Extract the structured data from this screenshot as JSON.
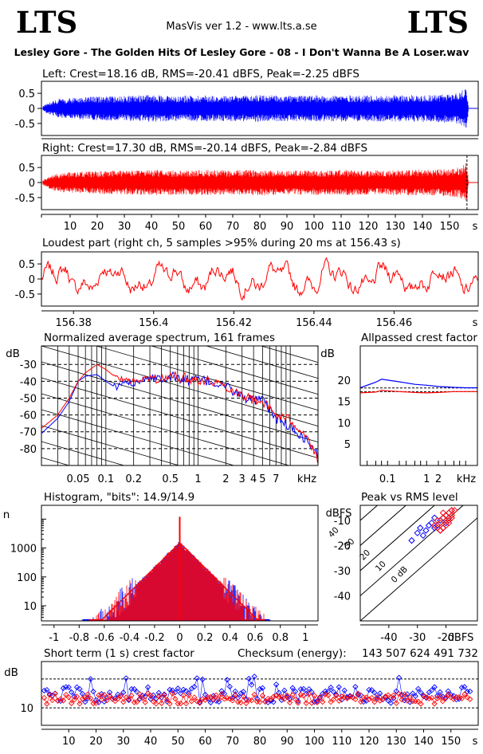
{
  "header": {
    "logo_left": "LTS",
    "logo_right": "LTS",
    "version": "MasVis ver 1.2 - www.lts.a.se",
    "filename": "Lesley Gore - The Golden Hits Of Lesley Gore - 08 - I Don't Wanna Be A Loser.wav"
  },
  "colors": {
    "left_channel": "#0000ff",
    "right_channel": "#ff0000",
    "axis": "#000000",
    "background": "#ffffff"
  },
  "chart_data": [
    {
      "id": "left-waveform",
      "type": "area",
      "title": "Left: Crest=18.16 dB, RMS=-20.41 dBFS, Peak=-2.25 dBFS",
      "series": [
        {
          "name": "Left",
          "color": "#0000ff"
        }
      ],
      "crest_db": 18.16,
      "rms_dbfs": -20.41,
      "peak_dbfs": -2.25,
      "ylim": [
        -0.9,
        0.9
      ],
      "yticks": [
        0.5,
        0,
        -0.5
      ],
      "ytick_labels": [
        "0.5",
        "0",
        "-0.5"
      ],
      "xlim": [
        0,
        160
      ],
      "envelope": {
        "x": [
          0,
          2,
          5,
          10,
          20,
          30,
          40,
          50,
          60,
          70,
          80,
          90,
          100,
          110,
          120,
          130,
          140,
          150,
          154,
          156.4,
          157
        ],
        "amplitude": [
          0.08,
          0.2,
          0.3,
          0.35,
          0.4,
          0.42,
          0.45,
          0.42,
          0.44,
          0.42,
          0.45,
          0.42,
          0.43,
          0.44,
          0.43,
          0.44,
          0.45,
          0.48,
          0.55,
          0.75,
          0
        ]
      }
    },
    {
      "id": "right-waveform",
      "type": "area",
      "title": "Right: Crest=17.30 dB, RMS=-20.14 dBFS, Peak=-2.84 dBFS",
      "series": [
        {
          "name": "Right",
          "color": "#ff0000"
        }
      ],
      "crest_db": 17.3,
      "rms_dbfs": -20.14,
      "peak_dbfs": -2.84,
      "ylim": [
        -0.9,
        0.9
      ],
      "yticks": [
        0.5,
        0,
        -0.5
      ],
      "ytick_labels": [
        "0.5",
        "0",
        "-0.5"
      ],
      "xlim": [
        0,
        160
      ],
      "xticks": [
        10,
        20,
        30,
        40,
        50,
        60,
        70,
        80,
        90,
        100,
        110,
        120,
        130,
        140,
        150
      ],
      "xtick_labels": [
        "10",
        "20",
        "30",
        "40",
        "50",
        "60",
        "70",
        "80",
        "90",
        "100",
        "110",
        "120",
        "130",
        "140",
        "150"
      ],
      "xunit": "s",
      "marker_x": 156.43,
      "envelope": {
        "x": [
          0,
          2,
          5,
          10,
          20,
          30,
          40,
          50,
          60,
          70,
          80,
          90,
          100,
          110,
          120,
          130,
          140,
          150,
          154,
          156.4,
          157
        ],
        "amplitude": [
          0.08,
          0.2,
          0.3,
          0.35,
          0.38,
          0.4,
          0.42,
          0.4,
          0.42,
          0.4,
          0.43,
          0.4,
          0.41,
          0.42,
          0.41,
          0.42,
          0.43,
          0.46,
          0.52,
          0.7,
          0
        ]
      }
    },
    {
      "id": "loudest-part",
      "type": "line",
      "title": "Loudest part (right ch, 5 samples >95% during 20 ms at 156.43 s)",
      "series": [
        {
          "name": "Right",
          "color": "#ff0000"
        }
      ],
      "ylim": [
        -0.9,
        0.9
      ],
      "yticks": [
        0.5,
        0,
        -0.5
      ],
      "ytick_labels": [
        "0.5",
        "0",
        "-0.5"
      ],
      "xlim": [
        156.372,
        156.481
      ],
      "xticks": [
        156.38,
        156.4,
        156.42,
        156.44,
        156.46
      ],
      "xtick_labels": [
        "156.38",
        "156.4",
        "156.42",
        "156.44",
        "156.46"
      ],
      "xunit": "s"
    },
    {
      "id": "average-spectrum",
      "type": "line",
      "title": "Normalized average spectrum, 161 frames",
      "ylabel": "dB",
      "xunit": "kHz",
      "xscale": "log",
      "xlim_khz": [
        0.02,
        20
      ],
      "ylim": [
        -90,
        -19
      ],
      "yticks": [
        -30,
        -40,
        -50,
        -60,
        -70,
        -80
      ],
      "ytick_labels": [
        "-30",
        "-40",
        "-50",
        "-60",
        "-70",
        "-80"
      ],
      "xticks_khz": [
        0.05,
        0.1,
        0.2,
        0.5,
        1,
        2,
        3,
        4,
        5,
        7
      ],
      "xtick_labels": [
        "0.05",
        "0.1",
        "0.2",
        "0.5",
        "1",
        "2",
        "3",
        "4",
        "5",
        "7"
      ],
      "series": [
        {
          "name": "Left",
          "color": "#0000ff",
          "x_khz": [
            0.02,
            0.03,
            0.04,
            0.05,
            0.06,
            0.08,
            0.1,
            0.13,
            0.16,
            0.2,
            0.3,
            0.4,
            0.5,
            0.7,
            1,
            1.5,
            2,
            3,
            4,
            5,
            7,
            10,
            15,
            20
          ],
          "db": [
            -71,
            -62,
            -52,
            -40,
            -37,
            -36,
            -40,
            -44,
            -40,
            -41,
            -37,
            -38,
            -37,
            -39,
            -39,
            -41,
            -43,
            -49,
            -52,
            -51,
            -62,
            -67,
            -75,
            -84
          ]
        },
        {
          "name": "Right",
          "color": "#ff0000",
          "x_khz": [
            0.02,
            0.03,
            0.04,
            0.05,
            0.06,
            0.08,
            0.1,
            0.13,
            0.16,
            0.2,
            0.3,
            0.4,
            0.5,
            0.7,
            1,
            1.5,
            2,
            3,
            4,
            5,
            7,
            10,
            15,
            20
          ],
          "db": [
            -68,
            -60,
            -50,
            -40,
            -35,
            -30,
            -33,
            -38,
            -39,
            -40,
            -38,
            -39,
            -37,
            -38,
            -39,
            -40,
            -43,
            -48,
            -51,
            -52,
            -60,
            -63,
            -72,
            -88
          ]
        }
      ]
    },
    {
      "id": "allpassed-crest",
      "type": "line",
      "title": "Allpassed crest factor",
      "ylabel": "dB",
      "xunit": "kHz",
      "xscale": "log",
      "xlim_khz": [
        0.02,
        20
      ],
      "ylim": [
        0,
        28
      ],
      "yticks": [
        20,
        15,
        10,
        5
      ],
      "ytick_labels": [
        "20",
        "15",
        "10",
        "5"
      ],
      "xticks_khz": [
        0.1,
        1,
        2
      ],
      "xtick_labels": [
        "0.1",
        "1",
        "2"
      ],
      "ref_lines": [
        18.16,
        17.3
      ],
      "series": [
        {
          "name": "Left",
          "color": "#0000ff",
          "x_khz": [
            0.02,
            0.05,
            0.07,
            0.1,
            0.2,
            0.5,
            1,
            2,
            5,
            10,
            20
          ],
          "db": [
            18.2,
            19.5,
            20.2,
            20.0,
            19.6,
            19.0,
            18.8,
            18.5,
            18.3,
            18.2,
            18.2
          ]
        },
        {
          "name": "Right",
          "color": "#ff0000",
          "x_khz": [
            0.02,
            0.05,
            0.07,
            0.1,
            0.2,
            0.5,
            1,
            2,
            5,
            10,
            20
          ],
          "db": [
            17.0,
            17.2,
            17.6,
            17.5,
            17.3,
            17.1,
            17.0,
            17.1,
            17.3,
            17.3,
            17.3
          ]
        }
      ]
    },
    {
      "id": "histogram",
      "type": "line",
      "title": "Histogram, \"bits\": 14.9/14.9",
      "ylabel": "n",
      "yscale": "log",
      "ylim": [
        3,
        30000
      ],
      "yticks": [
        1000,
        100,
        10
      ],
      "ytick_labels": [
        "1000",
        "100",
        "10"
      ],
      "xlim": [
        -1.1,
        1.1
      ],
      "xticks": [
        -1,
        -0.8,
        -0.6,
        -0.4,
        -0.2,
        0,
        0.2,
        0.4,
        0.6,
        0.8,
        1
      ],
      "xtick_labels": [
        "-1",
        "-0.8",
        "-0.6",
        "-0.4",
        "-0.2",
        "0",
        "0.2",
        "0.4",
        "0.6",
        "0.8",
        "1"
      ],
      "series": [
        {
          "name": "Left",
          "color": "#0000ff",
          "x_range": [
            -0.78,
            0.72
          ]
        },
        {
          "name": "Right",
          "color": "#ff0000",
          "x_range": [
            -0.72,
            0.68
          ]
        }
      ],
      "peak_count": 1500,
      "center_spike": 12000
    },
    {
      "id": "peak-vs-rms",
      "type": "scatter",
      "title": "Peak vs RMS level",
      "ylabel": "dBFS",
      "xunit": "dBFS",
      "xlim": [
        -50,
        -9
      ],
      "ylim": [
        -50,
        -4
      ],
      "xticks": [
        -40,
        -30,
        -20
      ],
      "xtick_labels": [
        "-40",
        "-30",
        "-20"
      ],
      "yticks": [
        -10,
        -20,
        -30,
        -40
      ],
      "ytick_labels": [
        "-10",
        "-20",
        "-30",
        "-40"
      ],
      "crest_lines": [
        0,
        10,
        20,
        30,
        40
      ],
      "crest_labels": [
        "0 dB",
        "10",
        "20",
        "30",
        "40"
      ],
      "series": [
        {
          "name": "Left",
          "color": "#0000ff",
          "x": [
            -32,
            -30,
            -29,
            -28,
            -27,
            -26,
            -25,
            -24,
            -23,
            -22,
            -21,
            -20,
            -19,
            -18,
            -22,
            -24,
            -20,
            -19,
            -21
          ],
          "y": [
            -18,
            -15,
            -13,
            -16,
            -14,
            -12,
            -11,
            -13,
            -12,
            -10,
            -9,
            -8,
            -7,
            -6,
            -14,
            -9,
            -11,
            -9,
            -13
          ]
        },
        {
          "name": "Right",
          "color": "#ff0000",
          "x": [
            -24,
            -23,
            -22,
            -21,
            -20,
            -19,
            -18,
            -17,
            -22,
            -21,
            -20,
            -19,
            -18,
            -23,
            -20,
            -19,
            -21,
            -18
          ],
          "y": [
            -12,
            -10,
            -11,
            -9,
            -8,
            -7,
            -6,
            -6,
            -14,
            -13,
            -12,
            -10,
            -9,
            -13,
            -10,
            -11,
            -7,
            -8
          ]
        }
      ]
    },
    {
      "id": "short-term-crest",
      "type": "scatter",
      "title": "Short term (1 s) crest factor",
      "checksum_label": "Checksum (energy):",
      "checksum_value": "143 507 624 491 732",
      "ylabel": "dB",
      "ylim": [
        4,
        26
      ],
      "yticks": [
        10
      ],
      "ytick_labels": [
        "10"
      ],
      "ref_lines": [
        20,
        10
      ],
      "xlim": [
        0,
        160
      ],
      "xticks": [
        10,
        20,
        30,
        40,
        50,
        60,
        70,
        80,
        90,
        100,
        110,
        120,
        130,
        140,
        150
      ],
      "xtick_labels": [
        "10",
        "20",
        "30",
        "40",
        "50",
        "60",
        "70",
        "80",
        "90",
        "100",
        "110",
        "120",
        "130",
        "140",
        "150"
      ],
      "xunit": "s",
      "series": [
        {
          "name": "Left",
          "color": "#0000ff",
          "mean_db": 14.5,
          "spread_db": 2.8,
          "count": 157
        },
        {
          "name": "Right",
          "color": "#ff0000",
          "mean_db": 13.2,
          "spread_db": 1.8,
          "count": 157
        }
      ]
    }
  ]
}
